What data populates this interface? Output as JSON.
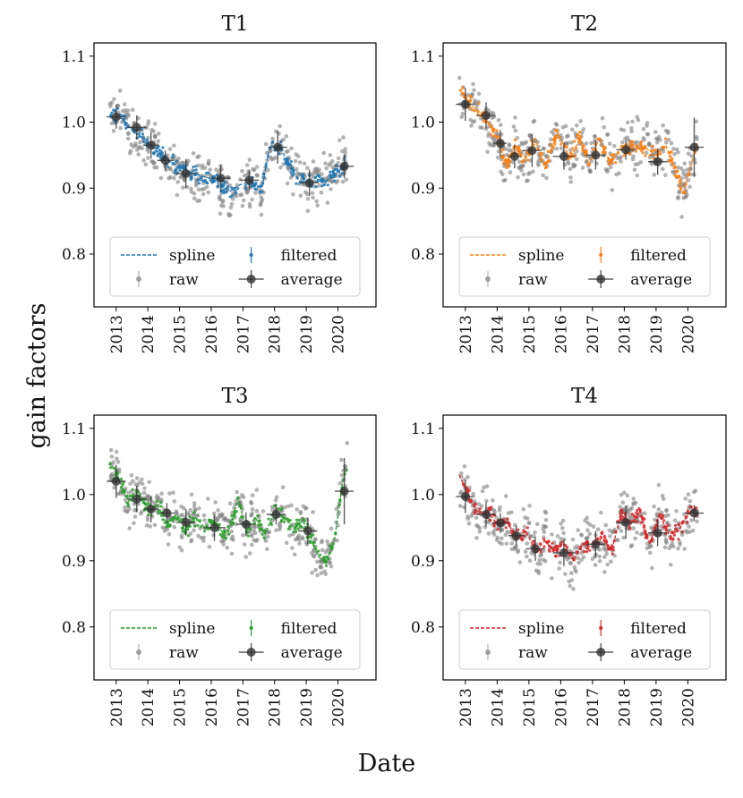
{
  "figure": {
    "xlabel": "Date",
    "ylabel": "gain factors"
  },
  "legend_labels": {
    "spline": "spline",
    "filtered": "filtered",
    "raw": "raw",
    "average": "average"
  },
  "colors": {
    "T1": "#1f77b4",
    "T2": "#ff7f0e",
    "T3": "#2ca02c",
    "T4": "#d62728",
    "raw": "#808080",
    "average": "#333333"
  },
  "chart_data": [
    {
      "type": "scatter",
      "title": "T1",
      "color": "#1f77b4",
      "xlim": [
        2012.3,
        2021.2
      ],
      "ylim": [
        0.72,
        1.12
      ],
      "yticks": [
        0.8,
        0.9,
        1.0,
        1.1
      ],
      "ytick_labels": [
        "0.8",
        "0.9",
        "1.0",
        "1.1"
      ],
      "xticks": [
        2013,
        2014,
        2015,
        2016,
        2017,
        2018,
        2019,
        2020
      ],
      "xtick_labels": [
        "2013",
        "2014",
        "2015",
        "2016",
        "2017",
        "2018",
        "2019",
        "2020"
      ],
      "legend_location": "lower center",
      "spline": {
        "x": [
          2012.8,
          2013.2,
          2013.55,
          2013.9,
          2014.2,
          2014.55,
          2014.9,
          2015.25,
          2015.6,
          2015.95,
          2016.3,
          2016.6,
          2016.9,
          2017.25,
          2017.6,
          2017.85,
          2018.2,
          2018.5,
          2018.8,
          2019.2,
          2019.6,
          2020.0,
          2020.3
        ],
        "y": [
          1.01,
          1.005,
          0.985,
          0.975,
          0.96,
          0.945,
          0.935,
          0.925,
          0.92,
          0.915,
          0.905,
          0.895,
          0.905,
          0.91,
          0.9,
          0.965,
          0.96,
          0.93,
          0.91,
          0.91,
          0.91,
          0.925,
          0.94
        ]
      },
      "average": [
        {
          "x": 2013.0,
          "y": 1.008,
          "xerr": 0.3,
          "yerr": 0.018
        },
        {
          "x": 2013.65,
          "y": 0.992,
          "xerr": 0.3,
          "yerr": 0.018
        },
        {
          "x": 2014.1,
          "y": 0.965,
          "xerr": 0.25,
          "yerr": 0.02
        },
        {
          "x": 2014.55,
          "y": 0.942,
          "xerr": 0.25,
          "yerr": 0.015
        },
        {
          "x": 2015.2,
          "y": 0.922,
          "xerr": 0.3,
          "yerr": 0.022
        },
        {
          "x": 2016.3,
          "y": 0.915,
          "xerr": 0.3,
          "yerr": 0.02
        },
        {
          "x": 2017.2,
          "y": 0.912,
          "xerr": 0.3,
          "yerr": 0.015
        },
        {
          "x": 2018.1,
          "y": 0.962,
          "xerr": 0.3,
          "yerr": 0.025
        },
        {
          "x": 2019.1,
          "y": 0.908,
          "xerr": 0.3,
          "yerr": 0.02
        },
        {
          "x": 2020.2,
          "y": 0.933,
          "xerr": 0.3,
          "yerr": 0.018
        }
      ]
    },
    {
      "type": "scatter",
      "title": "T2",
      "color": "#ff7f0e",
      "xlim": [
        2012.3,
        2021.2
      ],
      "ylim": [
        0.72,
        1.12
      ],
      "yticks": [
        0.8,
        0.9,
        1.0,
        1.1
      ],
      "ytick_labels": [
        "0.8",
        "0.9",
        "1.0",
        "1.1"
      ],
      "xticks": [
        2013,
        2014,
        2015,
        2016,
        2017,
        2018,
        2019,
        2020
      ],
      "xtick_labels": [
        "2013",
        "2014",
        "2015",
        "2016",
        "2017",
        "2018",
        "2019",
        "2020"
      ],
      "legend_location": "lower center",
      "spline": {
        "x": [
          2012.8,
          2013.2,
          2013.6,
          2014.0,
          2014.3,
          2014.55,
          2014.85,
          2015.2,
          2015.5,
          2015.9,
          2016.3,
          2016.6,
          2016.9,
          2017.2,
          2017.55,
          2017.9,
          2018.3,
          2018.7,
          2019.0,
          2019.3,
          2019.6,
          2019.85,
          2020.1,
          2020.3
        ],
        "y": [
          1.05,
          1.025,
          1.01,
          0.975,
          0.935,
          0.965,
          0.94,
          0.975,
          0.93,
          0.985,
          0.945,
          0.975,
          0.935,
          0.975,
          0.94,
          0.96,
          0.965,
          0.96,
          0.95,
          0.965,
          0.93,
          0.89,
          0.935,
          0.97
        ]
      },
      "average": [
        {
          "x": 2013.0,
          "y": 1.027,
          "xerr": 0.3,
          "yerr": 0.025
        },
        {
          "x": 2013.65,
          "y": 1.01,
          "xerr": 0.3,
          "yerr": 0.02
        },
        {
          "x": 2014.1,
          "y": 0.968,
          "xerr": 0.2,
          "yerr": 0.02
        },
        {
          "x": 2014.55,
          "y": 0.948,
          "xerr": 0.2,
          "yerr": 0.018
        },
        {
          "x": 2015.1,
          "y": 0.957,
          "xerr": 0.3,
          "yerr": 0.025
        },
        {
          "x": 2016.1,
          "y": 0.948,
          "xerr": 0.35,
          "yerr": 0.02
        },
        {
          "x": 2017.1,
          "y": 0.95,
          "xerr": 0.3,
          "yerr": 0.022
        },
        {
          "x": 2018.05,
          "y": 0.958,
          "xerr": 0.3,
          "yerr": 0.015
        },
        {
          "x": 2019.05,
          "y": 0.94,
          "xerr": 0.3,
          "yerr": 0.02
        },
        {
          "x": 2020.2,
          "y": 0.962,
          "xerr": 0.3,
          "yerr": 0.045
        }
      ]
    },
    {
      "type": "scatter",
      "title": "T3",
      "color": "#2ca02c",
      "xlim": [
        2012.3,
        2021.2
      ],
      "ylim": [
        0.72,
        1.12
      ],
      "yticks": [
        0.8,
        0.9,
        1.0,
        1.1
      ],
      "ytick_labels": [
        "0.8",
        "0.9",
        "1.0",
        "1.1"
      ],
      "xticks": [
        2013,
        2014,
        2015,
        2016,
        2017,
        2018,
        2019,
        2020
      ],
      "xtick_labels": [
        "2013",
        "2014",
        "2015",
        "2016",
        "2017",
        "2018",
        "2019",
        "2020"
      ],
      "legend_location": "lower center",
      "spline": {
        "x": [
          2012.8,
          2013.1,
          2013.4,
          2013.7,
          2014.0,
          2014.3,
          2014.6,
          2014.9,
          2015.2,
          2015.5,
          2015.8,
          2016.1,
          2016.4,
          2016.6,
          2016.85,
          2017.1,
          2017.4,
          2017.7,
          2018.0,
          2018.3,
          2018.6,
          2018.9,
          2019.2,
          2019.4,
          2019.65,
          2019.9,
          2020.15,
          2020.3
        ],
        "y": [
          1.05,
          1.02,
          0.99,
          1.005,
          0.975,
          0.985,
          0.955,
          0.97,
          0.945,
          0.965,
          0.95,
          0.96,
          0.94,
          0.95,
          0.995,
          0.945,
          0.965,
          0.94,
          0.975,
          0.965,
          0.95,
          0.96,
          0.93,
          0.905,
          0.9,
          0.935,
          1.02,
          1.04
        ]
      },
      "average": [
        {
          "x": 2013.0,
          "y": 1.02,
          "xerr": 0.3,
          "yerr": 0.025
        },
        {
          "x": 2013.65,
          "y": 0.993,
          "xerr": 0.3,
          "yerr": 0.02
        },
        {
          "x": 2014.1,
          "y": 0.978,
          "xerr": 0.25,
          "yerr": 0.02
        },
        {
          "x": 2014.6,
          "y": 0.972,
          "xerr": 0.25,
          "yerr": 0.015
        },
        {
          "x": 2015.2,
          "y": 0.958,
          "xerr": 0.3,
          "yerr": 0.02
        },
        {
          "x": 2016.1,
          "y": 0.95,
          "xerr": 0.35,
          "yerr": 0.02
        },
        {
          "x": 2017.1,
          "y": 0.955,
          "xerr": 0.3,
          "yerr": 0.018
        },
        {
          "x": 2018.05,
          "y": 0.97,
          "xerr": 0.3,
          "yerr": 0.015
        },
        {
          "x": 2019.05,
          "y": 0.945,
          "xerr": 0.3,
          "yerr": 0.02
        },
        {
          "x": 2020.2,
          "y": 1.005,
          "xerr": 0.3,
          "yerr": 0.05
        }
      ]
    },
    {
      "type": "scatter",
      "title": "T4",
      "color": "#d62728",
      "xlim": [
        2012.3,
        2021.2
      ],
      "ylim": [
        0.72,
        1.12
      ],
      "yticks": [
        0.8,
        0.9,
        1.0,
        1.1
      ],
      "ytick_labels": [
        "0.8",
        "0.9",
        "1.0",
        "1.1"
      ],
      "xticks": [
        2013,
        2014,
        2015,
        2016,
        2017,
        2018,
        2019,
        2020
      ],
      "xtick_labels": [
        "2013",
        "2014",
        "2015",
        "2016",
        "2017",
        "2018",
        "2019",
        "2020"
      ],
      "legend_location": "lower center",
      "spline": {
        "x": [
          2012.8,
          2013.1,
          2013.4,
          2013.7,
          2014.0,
          2014.3,
          2014.6,
          2014.9,
          2015.2,
          2015.5,
          2015.8,
          2016.1,
          2016.4,
          2016.7,
          2017.0,
          2017.3,
          2017.6,
          2017.9,
          2018.2,
          2018.5,
          2018.8,
          2019.1,
          2019.4,
          2019.7,
          2020.0,
          2020.3
        ],
        "y": [
          1.03,
          1.0,
          0.97,
          0.975,
          0.955,
          0.96,
          0.935,
          0.945,
          0.915,
          0.93,
          0.915,
          0.925,
          0.9,
          0.925,
          0.92,
          0.935,
          0.915,
          0.97,
          0.955,
          0.975,
          0.925,
          0.97,
          0.94,
          0.945,
          0.97,
          0.975
        ]
      },
      "average": [
        {
          "x": 2013.0,
          "y": 0.997,
          "xerr": 0.3,
          "yerr": 0.025
        },
        {
          "x": 2013.65,
          "y": 0.97,
          "xerr": 0.3,
          "yerr": 0.018
        },
        {
          "x": 2014.1,
          "y": 0.957,
          "xerr": 0.25,
          "yerr": 0.015
        },
        {
          "x": 2014.6,
          "y": 0.938,
          "xerr": 0.25,
          "yerr": 0.015
        },
        {
          "x": 2015.2,
          "y": 0.918,
          "xerr": 0.3,
          "yerr": 0.018
        },
        {
          "x": 2016.1,
          "y": 0.912,
          "xerr": 0.35,
          "yerr": 0.02
        },
        {
          "x": 2017.1,
          "y": 0.925,
          "xerr": 0.3,
          "yerr": 0.02
        },
        {
          "x": 2018.05,
          "y": 0.958,
          "xerr": 0.3,
          "yerr": 0.025
        },
        {
          "x": 2019.05,
          "y": 0.942,
          "xerr": 0.3,
          "yerr": 0.02
        },
        {
          "x": 2020.2,
          "y": 0.972,
          "xerr": 0.3,
          "yerr": 0.012
        }
      ]
    }
  ]
}
